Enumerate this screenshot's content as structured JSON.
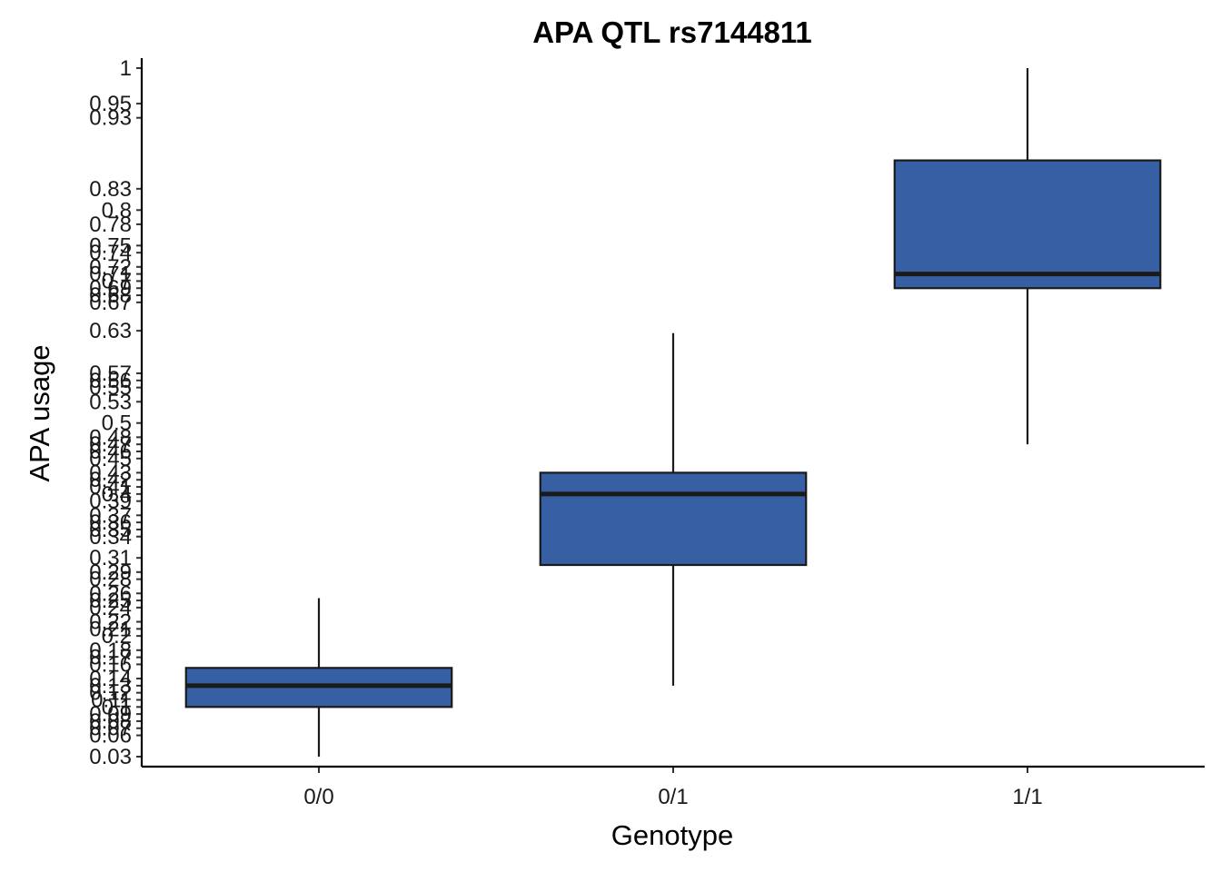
{
  "chart_data": {
    "type": "box",
    "title": "APA QTL rs7144811",
    "xlabel": "Genotype",
    "ylabel": "APA usage",
    "categories": [
      "0/0",
      "0/1",
      "1/1"
    ],
    "boxes": [
      {
        "category": "0/0",
        "min": 0.03,
        "q1": 0.1,
        "median": 0.13,
        "q3": 0.155,
        "max": 0.2533
      },
      {
        "category": "0/1",
        "min": 0.13,
        "q1": 0.3,
        "median": 0.4,
        "q3": 0.43,
        "max": 0.6267
      },
      {
        "category": "1/1",
        "min": 0.47,
        "q1": 0.69,
        "median": 0.71,
        "q3": 0.87,
        "max": 1.0
      }
    ],
    "y_ticks": [
      "0.03",
      "0.06",
      "0.07",
      "0.08",
      "0.09",
      "0.1",
      "0.11",
      "0.12",
      "0.13",
      "0.14",
      "0.16",
      "0.17",
      "0.18",
      "0.2",
      "0.21",
      "0.22",
      "0.24",
      "0.25",
      "0.26",
      "0.28",
      "0.29",
      "0.31",
      "0.34",
      "0.35",
      "0.36",
      "0.37",
      "0.39",
      "0.4",
      "0.41",
      "0.42",
      "0.43",
      "0.45",
      "0.46",
      "0.47",
      "0.48",
      "0.5",
      "0.53",
      "0.55",
      "0.56",
      "0.57",
      "0.63",
      "0.67",
      "0.68",
      "0.69",
      "0.7",
      "0.71",
      "0.72",
      "0.74",
      "0.75",
      "0.78",
      "0.8",
      "0.83",
      "0.93",
      "0.95",
      "1"
    ],
    "box_color": "#3660a3",
    "grid": false,
    "legend": "none"
  }
}
